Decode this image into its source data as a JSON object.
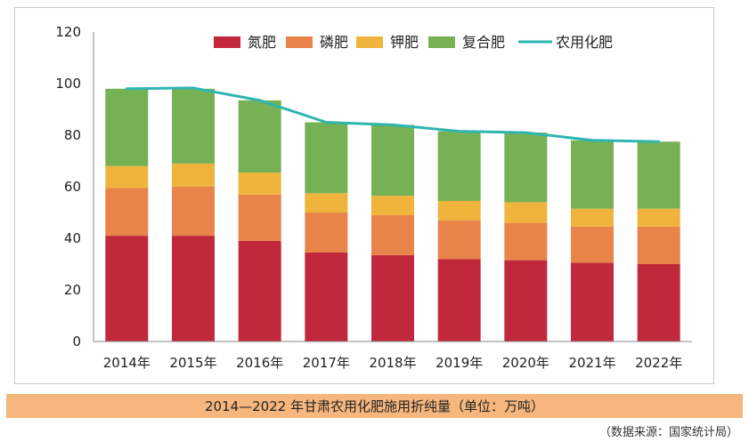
{
  "chart_data": {
    "type": "bar",
    "stacked": true,
    "title": "",
    "xlabel": "",
    "ylabel": "",
    "categories": [
      "2014年",
      "2015年",
      "2016年",
      "2017年",
      "2018年",
      "2019年",
      "2020年",
      "2021年",
      "2022年"
    ],
    "series": [
      {
        "name": "氮肥",
        "color": "#c1283c",
        "values": [
          41,
          41,
          39,
          34.5,
          33.5,
          32,
          31.5,
          30.5,
          30
        ]
      },
      {
        "name": "磷肥",
        "color": "#e8834a",
        "values": [
          18.5,
          19,
          18,
          15.5,
          15.5,
          15,
          14.5,
          14,
          14.5
        ]
      },
      {
        "name": "钾肥",
        "color": "#f0b43c",
        "values": [
          8.5,
          9,
          8.5,
          7.5,
          7.5,
          7.5,
          8,
          7,
          7
        ]
      },
      {
        "name": "复合肥",
        "color": "#76b153",
        "values": [
          30,
          29,
          28,
          27.5,
          27.5,
          27,
          27,
          26.5,
          26
        ]
      }
    ],
    "line_series": {
      "name": "农用化肥",
      "color": "#2fb5b0",
      "values": [
        98,
        98.3,
        93.5,
        85,
        84,
        81.5,
        81,
        78,
        77.5
      ]
    },
    "ylim": [
      0,
      120
    ],
    "yticks": [
      "0",
      "20",
      "40",
      "60",
      "80",
      "100",
      "120"
    ],
    "grid": false,
    "legend_position": "top"
  },
  "caption": "2014—2022 年甘肃农用化肥施用折纯量（单位：万吨）",
  "source": "（数据来源：国家统计局）"
}
